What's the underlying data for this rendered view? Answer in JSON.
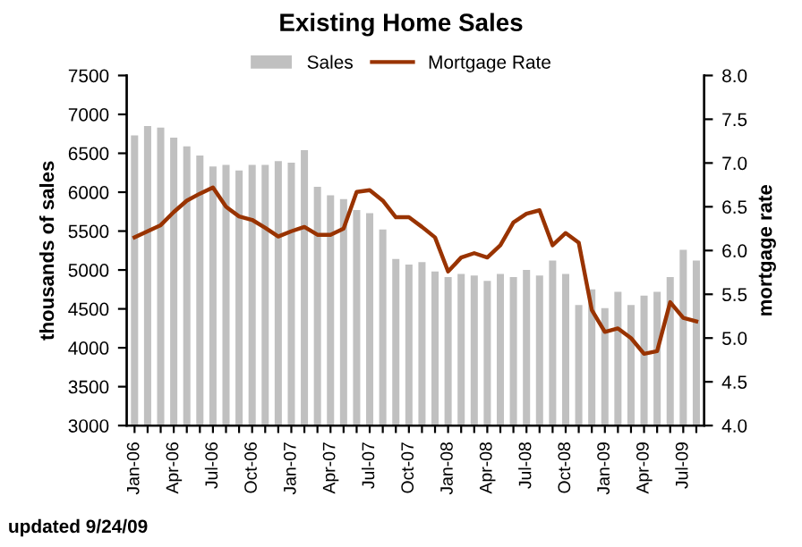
{
  "chart_data": {
    "type": "bar",
    "title": "Existing Home Sales",
    "ylabel": "thousands of sales",
    "y2label": "mortgage rate",
    "categories": [
      "Jan-06",
      null,
      null,
      "Apr-06",
      null,
      null,
      "Jul-06",
      null,
      null,
      "Oct-06",
      null,
      null,
      "Jan-07",
      null,
      null,
      "Apr-07",
      null,
      null,
      "Jul-07",
      null,
      null,
      "Oct-07",
      null,
      null,
      "Jan-08",
      null,
      null,
      "Apr-08",
      null,
      null,
      "Jul-08",
      null,
      null,
      "Oct-08",
      null,
      null,
      "Jan-09",
      null,
      null,
      "Apr-09",
      null,
      null,
      "Jul-09",
      null
    ],
    "series": [
      {
        "name": "Sales",
        "color": "#c0c0c0",
        "values": [
          6730,
          6850,
          6830,
          6700,
          6590,
          6470,
          6330,
          6350,
          6280,
          6350,
          6350,
          6400,
          6380,
          6540,
          6070,
          5960,
          5910,
          5770,
          5730,
          5520,
          5140,
          5070,
          5100,
          4980,
          4910,
          4950,
          4930,
          4860,
          4950,
          4910,
          5000,
          4930,
          5120,
          4950,
          4550,
          4750,
          4510,
          4720,
          4550,
          4670,
          4720,
          4910,
          5260,
          5120
        ]
      },
      {
        "name": "Mortgage Rate",
        "type": "line",
        "axis": "y2",
        "color": "#993300",
        "values": [
          6.15,
          6.22,
          6.29,
          6.44,
          6.57,
          6.65,
          6.72,
          6.5,
          6.39,
          6.35,
          6.26,
          6.16,
          6.22,
          6.27,
          6.18,
          6.18,
          6.25,
          6.67,
          6.69,
          6.57,
          6.38,
          6.38,
          6.27,
          6.15,
          5.76,
          5.92,
          5.97,
          5.92,
          6.06,
          6.32,
          6.42,
          6.46,
          6.06,
          6.2,
          6.09,
          5.32,
          5.07,
          5.11,
          5.0,
          4.82,
          4.85,
          5.41,
          5.23,
          5.19
        ]
      }
    ],
    "ylim": [
      3000,
      7500
    ],
    "yticks": [
      3000,
      3500,
      4000,
      4500,
      5000,
      5500,
      6000,
      6500,
      7000,
      7500
    ],
    "y2lim": [
      4.0,
      8.0
    ],
    "y2ticks": [
      {
        "value": 4,
        "label": "4.0"
      },
      {
        "value": 4.5,
        "label": "4.5"
      },
      {
        "value": 5,
        "label": "5.0"
      },
      {
        "value": 5.5,
        "label": "5.5"
      },
      {
        "value": 6,
        "label": "6.0"
      },
      {
        "value": 6.5,
        "label": "6.5"
      },
      {
        "value": 7,
        "label": "7.0"
      },
      {
        "value": 7.5,
        "label": "7.5"
      },
      {
        "value": 8,
        "label": "8.0"
      }
    ],
    "legend": "top",
    "grid": false,
    "annotations": [
      "updated 9/24/09"
    ]
  }
}
